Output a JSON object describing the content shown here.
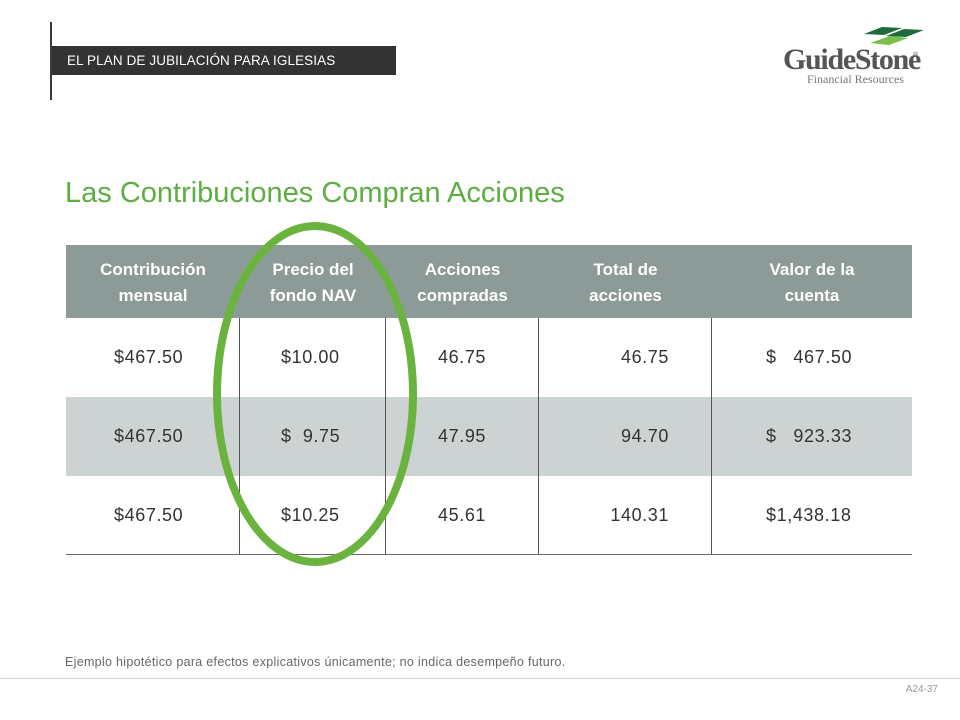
{
  "header": {
    "section_label": "EL PLAN DE JUBILACIÓN PARA IGLESIAS"
  },
  "logo": {
    "name": "GuideStone",
    "registered_mark": "®",
    "subtitle": "Financial Resources",
    "colors": {
      "chevron_dark": "#1e6b3c",
      "chevron_light": "#7bbf4a",
      "wordmark": "#555555"
    }
  },
  "title": "Las Contribuciones Compran Acciones",
  "table": {
    "headers": [
      [
        "Contribución",
        "mensual"
      ],
      [
        "Precio del",
        "fondo NAV"
      ],
      [
        "Acciones",
        "compradas"
      ],
      [
        "Total de",
        "acciones"
      ],
      [
        "Valor de la",
        "cuenta"
      ]
    ],
    "rows": [
      [
        "$467.50",
        "$10.00",
        "46.75",
        "46.75",
        "$   467.50"
      ],
      [
        "$467.50",
        "$  9.75",
        "47.95",
        "94.70",
        "$   923.33"
      ],
      [
        "$467.50",
        "$10.25",
        "45.61",
        "140.31",
        "$1,438.18"
      ]
    ]
  },
  "highlight": {
    "target_column": "Precio del fondo NAV",
    "color": "#6bb33f"
  },
  "colors": {
    "title": "#5cae42",
    "header_bg": "#8c9b98",
    "shaded_row": "#ccd3d2",
    "section_label_bg": "#333333"
  },
  "footnote": "Ejemplo hipotético para efectos explicativos únicamente; no indica desempeño futuro.",
  "slide_number": "A24-37"
}
